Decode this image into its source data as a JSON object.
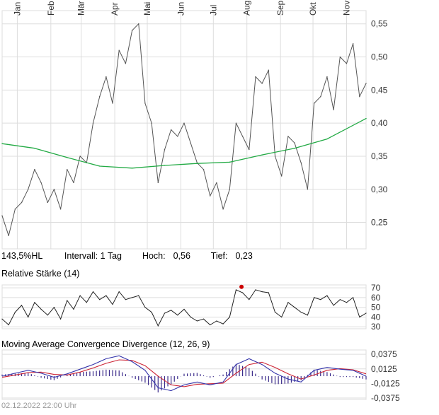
{
  "info_bar": {
    "change": "143,5%HL",
    "interval_label": "Intervall:",
    "interval_value": "1 Tag",
    "high_label": "Hoch:",
    "high_value": "0,56",
    "low_label": "Tief:",
    "low_value": "0,23"
  },
  "footer": {
    "timestamp": "02.12.2022 22:00 Uhr"
  },
  "colors": {
    "price_line": "#555555",
    "moving_average": "#22aa44",
    "rsi_line": "#222222",
    "rsi_marker": "#cc0000",
    "macd_line": "#3333aa",
    "signal_line": "#cc2233",
    "histogram": "#3a2a8a",
    "grid": "#dddddd"
  },
  "chart_data": [
    {
      "type": "line",
      "months": [
        "Jan",
        "Feb",
        "Mär",
        "Apr",
        "Mai",
        "Jun",
        "Jul",
        "Aug",
        "Sep",
        "Okt",
        "Nov"
      ],
      "ylim": [
        0.21,
        0.57
      ],
      "yticks": [
        "0,25",
        "0,30",
        "0,35",
        "0,40",
        "0,45",
        "0,50",
        "0,55"
      ],
      "ytick_values": [
        0.25,
        0.3,
        0.35,
        0.4,
        0.45,
        0.5,
        0.55
      ],
      "grid": true,
      "series": [
        {
          "kind": "price",
          "x_days": [
            0,
            6,
            12,
            18,
            24,
            30,
            36,
            42,
            48,
            54,
            60,
            66,
            72,
            78,
            84,
            90,
            96,
            102,
            108,
            114,
            120,
            126,
            132,
            138,
            144,
            150,
            156,
            162,
            168,
            174,
            180,
            186,
            192,
            198,
            204,
            210,
            216,
            222,
            228,
            234,
            240,
            246,
            252,
            258,
            264,
            270,
            276,
            282,
            288,
            294,
            300,
            306,
            312,
            318,
            324,
            330,
            336
          ],
          "values": [
            0.26,
            0.23,
            0.27,
            0.28,
            0.3,
            0.33,
            0.31,
            0.28,
            0.3,
            0.27,
            0.33,
            0.31,
            0.35,
            0.34,
            0.4,
            0.44,
            0.47,
            0.43,
            0.51,
            0.49,
            0.54,
            0.55,
            0.43,
            0.4,
            0.31,
            0.36,
            0.39,
            0.38,
            0.4,
            0.37,
            0.34,
            0.33,
            0.29,
            0.31,
            0.27,
            0.3,
            0.4,
            0.38,
            0.36,
            0.47,
            0.46,
            0.48,
            0.35,
            0.32,
            0.38,
            0.37,
            0.34,
            0.3,
            0.43,
            0.44,
            0.47,
            0.42,
            0.5,
            0.49,
            0.52,
            0.44,
            0.46
          ]
        },
        {
          "kind": "moving_average",
          "x_days": [
            0,
            30,
            60,
            90,
            120,
            150,
            180,
            210,
            240,
            270,
            300,
            336
          ],
          "values": [
            0.369,
            0.362,
            0.348,
            0.335,
            0.332,
            0.336,
            0.339,
            0.341,
            0.352,
            0.362,
            0.376,
            0.407
          ]
        }
      ]
    },
    {
      "type": "line",
      "title": "Relative Stärke (14)",
      "ylim": [
        28,
        73
      ],
      "yticks": [
        "70",
        "60",
        "50",
        "40",
        "30"
      ],
      "ytick_values": [
        70,
        60,
        50,
        40,
        30
      ],
      "grid": true,
      "series": [
        {
          "kind": "rsi",
          "x_days": [
            0,
            6,
            12,
            18,
            24,
            30,
            36,
            42,
            48,
            54,
            60,
            66,
            72,
            78,
            84,
            90,
            96,
            102,
            108,
            114,
            120,
            126,
            132,
            138,
            144,
            150,
            156,
            162,
            168,
            174,
            180,
            186,
            192,
            198,
            204,
            210,
            216,
            222,
            228,
            234,
            240,
            246,
            252,
            258,
            264,
            270,
            276,
            282,
            288,
            294,
            300,
            306,
            312,
            318,
            324,
            330,
            336
          ],
          "values": [
            38,
            32,
            45,
            52,
            40,
            55,
            48,
            42,
            50,
            38,
            57,
            48,
            62,
            55,
            66,
            58,
            62,
            53,
            66,
            58,
            60,
            62,
            50,
            45,
            31,
            44,
            47,
            42,
            48,
            40,
            36,
            38,
            32,
            36,
            33,
            40,
            68,
            65,
            58,
            68,
            66,
            65,
            45,
            40,
            55,
            50,
            45,
            42,
            60,
            58,
            62,
            52,
            58,
            55,
            60,
            40,
            44
          ]
        }
      ],
      "marker": {
        "x_day": 221,
        "value": 71
      }
    },
    {
      "type": "bar",
      "title": "Moving Average Convergence Divergence (12, 26, 9)",
      "ylim": [
        -0.04,
        0.045
      ],
      "yticks": [
        "0,0375",
        "0,0125",
        "-0,0125",
        "-0,0375"
      ],
      "ytick_values": [
        0.0375,
        0.0125,
        -0.0125,
        -0.0375
      ],
      "grid": true,
      "series": [
        {
          "kind": "macd",
          "x_days": [
            0,
            12,
            24,
            36,
            48,
            60,
            72,
            84,
            96,
            108,
            120,
            132,
            144,
            156,
            168,
            180,
            192,
            204,
            216,
            228,
            240,
            252,
            264,
            276,
            288,
            300,
            312,
            324,
            336
          ],
          "values": [
            0.0,
            0.005,
            0.01,
            0.005,
            -0.002,
            0.004,
            0.012,
            0.02,
            0.03,
            0.035,
            0.025,
            0.01,
            -0.02,
            -0.025,
            -0.015,
            -0.01,
            -0.015,
            -0.01,
            0.02,
            0.03,
            0.02,
            0.005,
            -0.005,
            -0.01,
            0.01,
            0.015,
            0.012,
            0.01,
            0.0
          ]
        },
        {
          "kind": "signal",
          "x_days": [
            0,
            12,
            24,
            36,
            48,
            60,
            72,
            84,
            96,
            108,
            120,
            132,
            144,
            156,
            168,
            180,
            192,
            204,
            216,
            228,
            240,
            252,
            264,
            276,
            288,
            300,
            312,
            324,
            336
          ],
          "values": [
            -0.002,
            0.002,
            0.006,
            0.007,
            0.003,
            0.002,
            0.007,
            0.014,
            0.022,
            0.028,
            0.027,
            0.018,
            0.0,
            -0.015,
            -0.018,
            -0.014,
            -0.013,
            -0.012,
            0.005,
            0.02,
            0.024,
            0.015,
            0.004,
            -0.005,
            0.002,
            0.01,
            0.013,
            0.011,
            0.004
          ]
        }
      ]
    }
  ]
}
